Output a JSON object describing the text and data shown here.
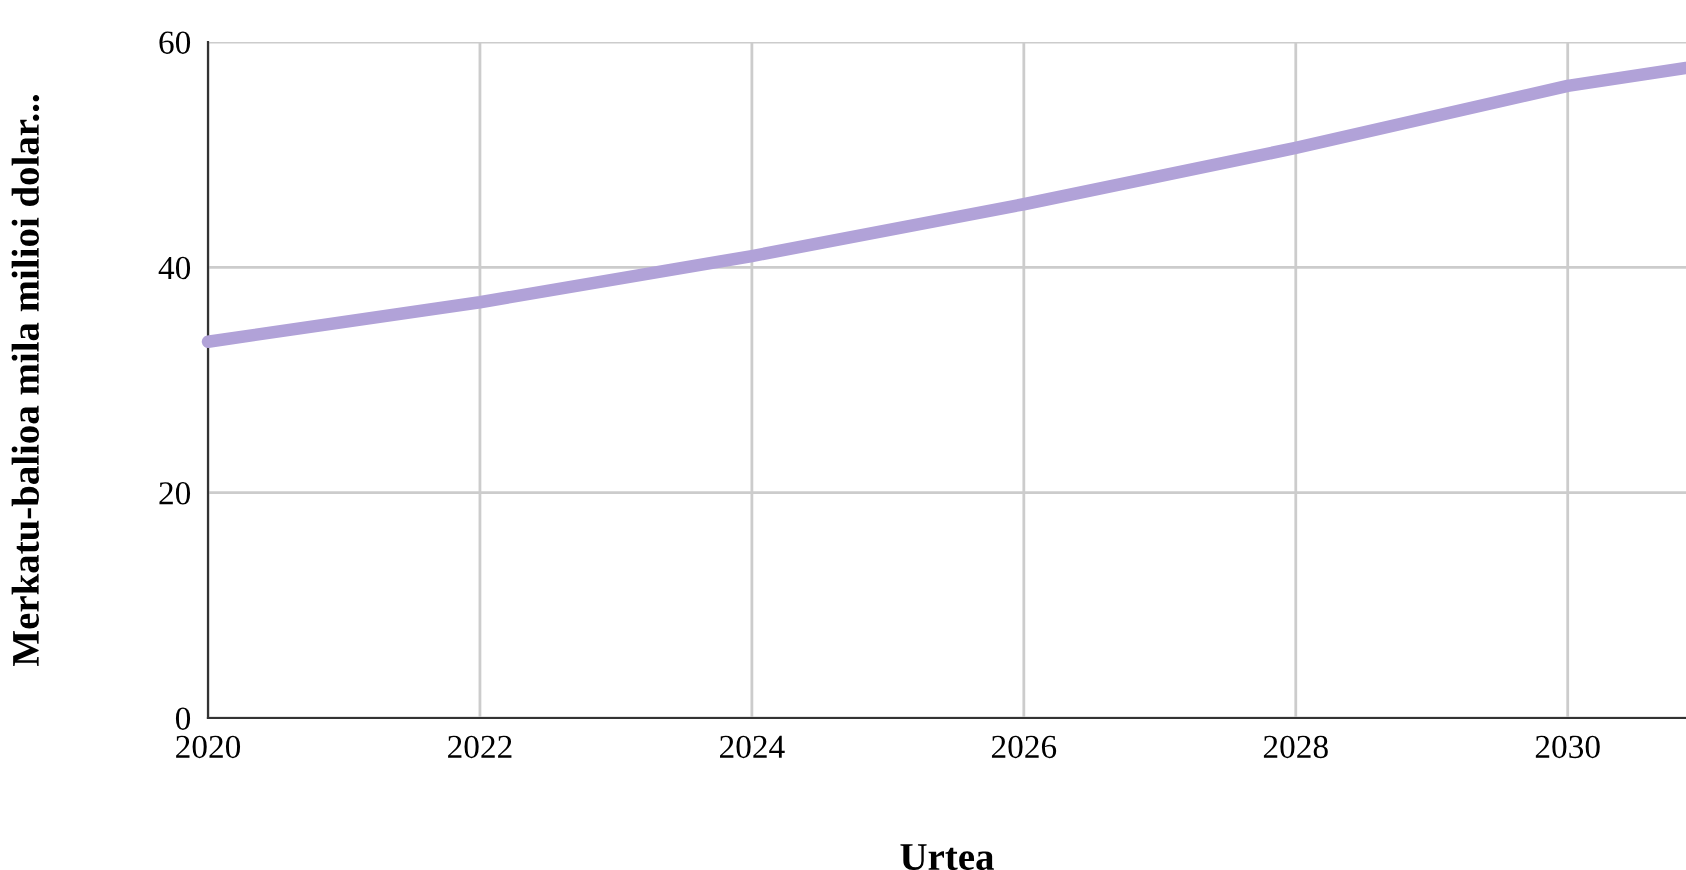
{
  "chart_data": {
    "type": "line",
    "xlabel": "Urtea",
    "ylabel": "Merkatu-balioa mila milioi dolar...",
    "x": [
      2020,
      2022,
      2024,
      2026,
      2028,
      2030,
      2030.87
    ],
    "series": [
      {
        "color": "#b1a2d8",
        "values": [
          33.4,
          36.9,
          41.0,
          45.6,
          50.6,
          56.1,
          57.7
        ]
      }
    ],
    "xlim": [
      2020,
      2030.87
    ],
    "xticks": [
      2020,
      2022,
      2024,
      2026,
      2028,
      2030
    ],
    "ylim": [
      0,
      60
    ],
    "yticks": [
      0,
      20,
      40,
      60
    ],
    "grid": true,
    "marker": "none",
    "line_style": "solid"
  }
}
